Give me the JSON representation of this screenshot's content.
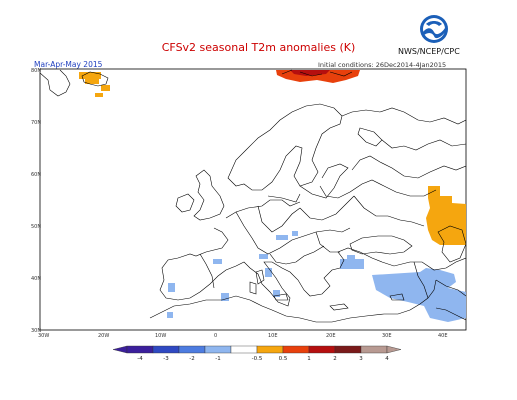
{
  "title": "CFSv2 seasonal T2m anomalies (K)",
  "season": "Mar-Apr-May 2015",
  "initial_conditions": "Initial conditions: 26Dec2014-4Jan2015",
  "agency": "NWS/NCEP/CPC",
  "logo_icon": "noaa-logo-icon",
  "lat_labels": [
    "80N",
    "70N",
    "60N",
    "50N",
    "40N",
    "30N"
  ],
  "lon_labels": [
    "30W",
    "20W",
    "10W",
    "0",
    "10E",
    "20E",
    "30E",
    "40E"
  ],
  "colorbar": {
    "ticks": [
      "-4",
      "-3",
      "-2",
      "-1",
      "-0.5",
      "0.5",
      "1",
      "2",
      "3",
      "4"
    ],
    "colors": [
      "#3b1f9c",
      "#2f49c2",
      "#4d7ce0",
      "#8fb6ef",
      "#ffffff",
      "#f5a60f",
      "#e8400c",
      "#b50f0f",
      "#7a1a1a",
      "#b89a92"
    ]
  }
}
